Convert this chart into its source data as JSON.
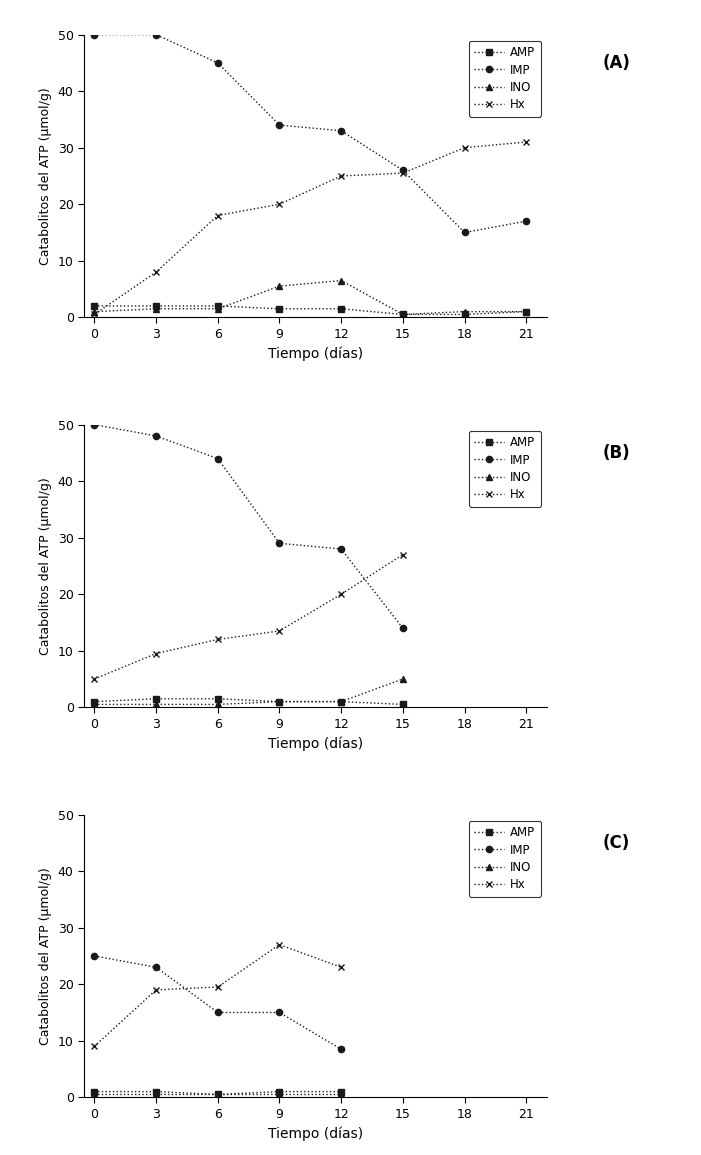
{
  "panels": [
    {
      "label": "(A)",
      "AMP": {
        "x": [
          0,
          3,
          6,
          9,
          12,
          15,
          18,
          21
        ],
        "y": [
          2.0,
          2.0,
          2.0,
          1.5,
          1.5,
          0.5,
          0.5,
          1.0
        ]
      },
      "IMP": {
        "x": [
          0,
          3,
          6,
          9,
          12,
          15,
          18,
          21
        ],
        "y": [
          50.0,
          50.0,
          45.0,
          34.0,
          33.0,
          26.0,
          15.0,
          17.0
        ]
      },
      "INO": {
        "x": [
          0,
          3,
          6,
          9,
          12,
          15,
          18,
          21
        ],
        "y": [
          1.0,
          1.5,
          1.5,
          5.5,
          6.5,
          0.5,
          1.0,
          1.0
        ]
      },
      "Hx": {
        "x": [
          0,
          3,
          6,
          9,
          12,
          15,
          18,
          21
        ],
        "y": [
          0.5,
          8.0,
          18.0,
          20.0,
          25.0,
          25.5,
          30.0,
          31.0
        ]
      },
      "xlim": [
        -0.5,
        22
      ],
      "ylim": [
        0,
        50
      ],
      "yticks": [
        0,
        10,
        20,
        30,
        40,
        50
      ],
      "xticks": [
        0,
        3,
        6,
        9,
        12,
        15,
        18,
        21
      ]
    },
    {
      "label": "(B)",
      "AMP": {
        "x": [
          0,
          3,
          6,
          9,
          12,
          15
        ],
        "y": [
          1.0,
          1.5,
          1.5,
          1.0,
          1.0,
          0.5
        ]
      },
      "IMP": {
        "x": [
          0,
          3,
          6,
          9,
          12,
          15
        ],
        "y": [
          50.0,
          48.0,
          44.0,
          29.0,
          28.0,
          14.0
        ]
      },
      "INO": {
        "x": [
          0,
          3,
          6,
          9,
          12,
          15
        ],
        "y": [
          0.5,
          0.5,
          0.5,
          1.0,
          1.0,
          5.0
        ]
      },
      "Hx": {
        "x": [
          0,
          3,
          6,
          9,
          12,
          15
        ],
        "y": [
          5.0,
          9.5,
          12.0,
          13.5,
          20.0,
          27.0
        ]
      },
      "xlim": [
        -0.5,
        22
      ],
      "ylim": [
        0,
        50
      ],
      "yticks": [
        0,
        10,
        20,
        30,
        40,
        50
      ],
      "xticks": [
        0,
        3,
        6,
        9,
        12,
        15,
        18,
        21
      ]
    },
    {
      "label": "(C)",
      "AMP": {
        "x": [
          0,
          3,
          6,
          9,
          12
        ],
        "y": [
          1.0,
          1.0,
          0.5,
          1.0,
          1.0
        ]
      },
      "IMP": {
        "x": [
          0,
          3,
          6,
          9,
          12
        ],
        "y": [
          25.0,
          23.0,
          15.0,
          15.0,
          8.5
        ]
      },
      "INO": {
        "x": [
          0,
          3,
          6,
          9,
          12
        ],
        "y": [
          0.5,
          0.5,
          0.5,
          0.5,
          0.5
        ]
      },
      "Hx": {
        "x": [
          0,
          3,
          6,
          9,
          12
        ],
        "y": [
          9.0,
          19.0,
          19.5,
          27.0,
          23.0
        ]
      },
      "xlim": [
        -0.5,
        22
      ],
      "ylim": [
        0,
        50
      ],
      "yticks": [
        0,
        10,
        20,
        30,
        40,
        50
      ],
      "xticks": [
        0,
        3,
        6,
        9,
        12,
        15,
        18,
        21
      ]
    }
  ],
  "ylabel": "Catabolitos del ATP (μmol/g)",
  "xlabel": "Tiempo (días)",
  "legend_labels": [
    "AMP",
    "IMP",
    "INO",
    "Hx"
  ],
  "line_color": "#1a1a1a",
  "background_color": "#ffffff",
  "marker_AMP": "s",
  "marker_IMP": "o",
  "marker_INO": "^",
  "marker_Hx": "x"
}
